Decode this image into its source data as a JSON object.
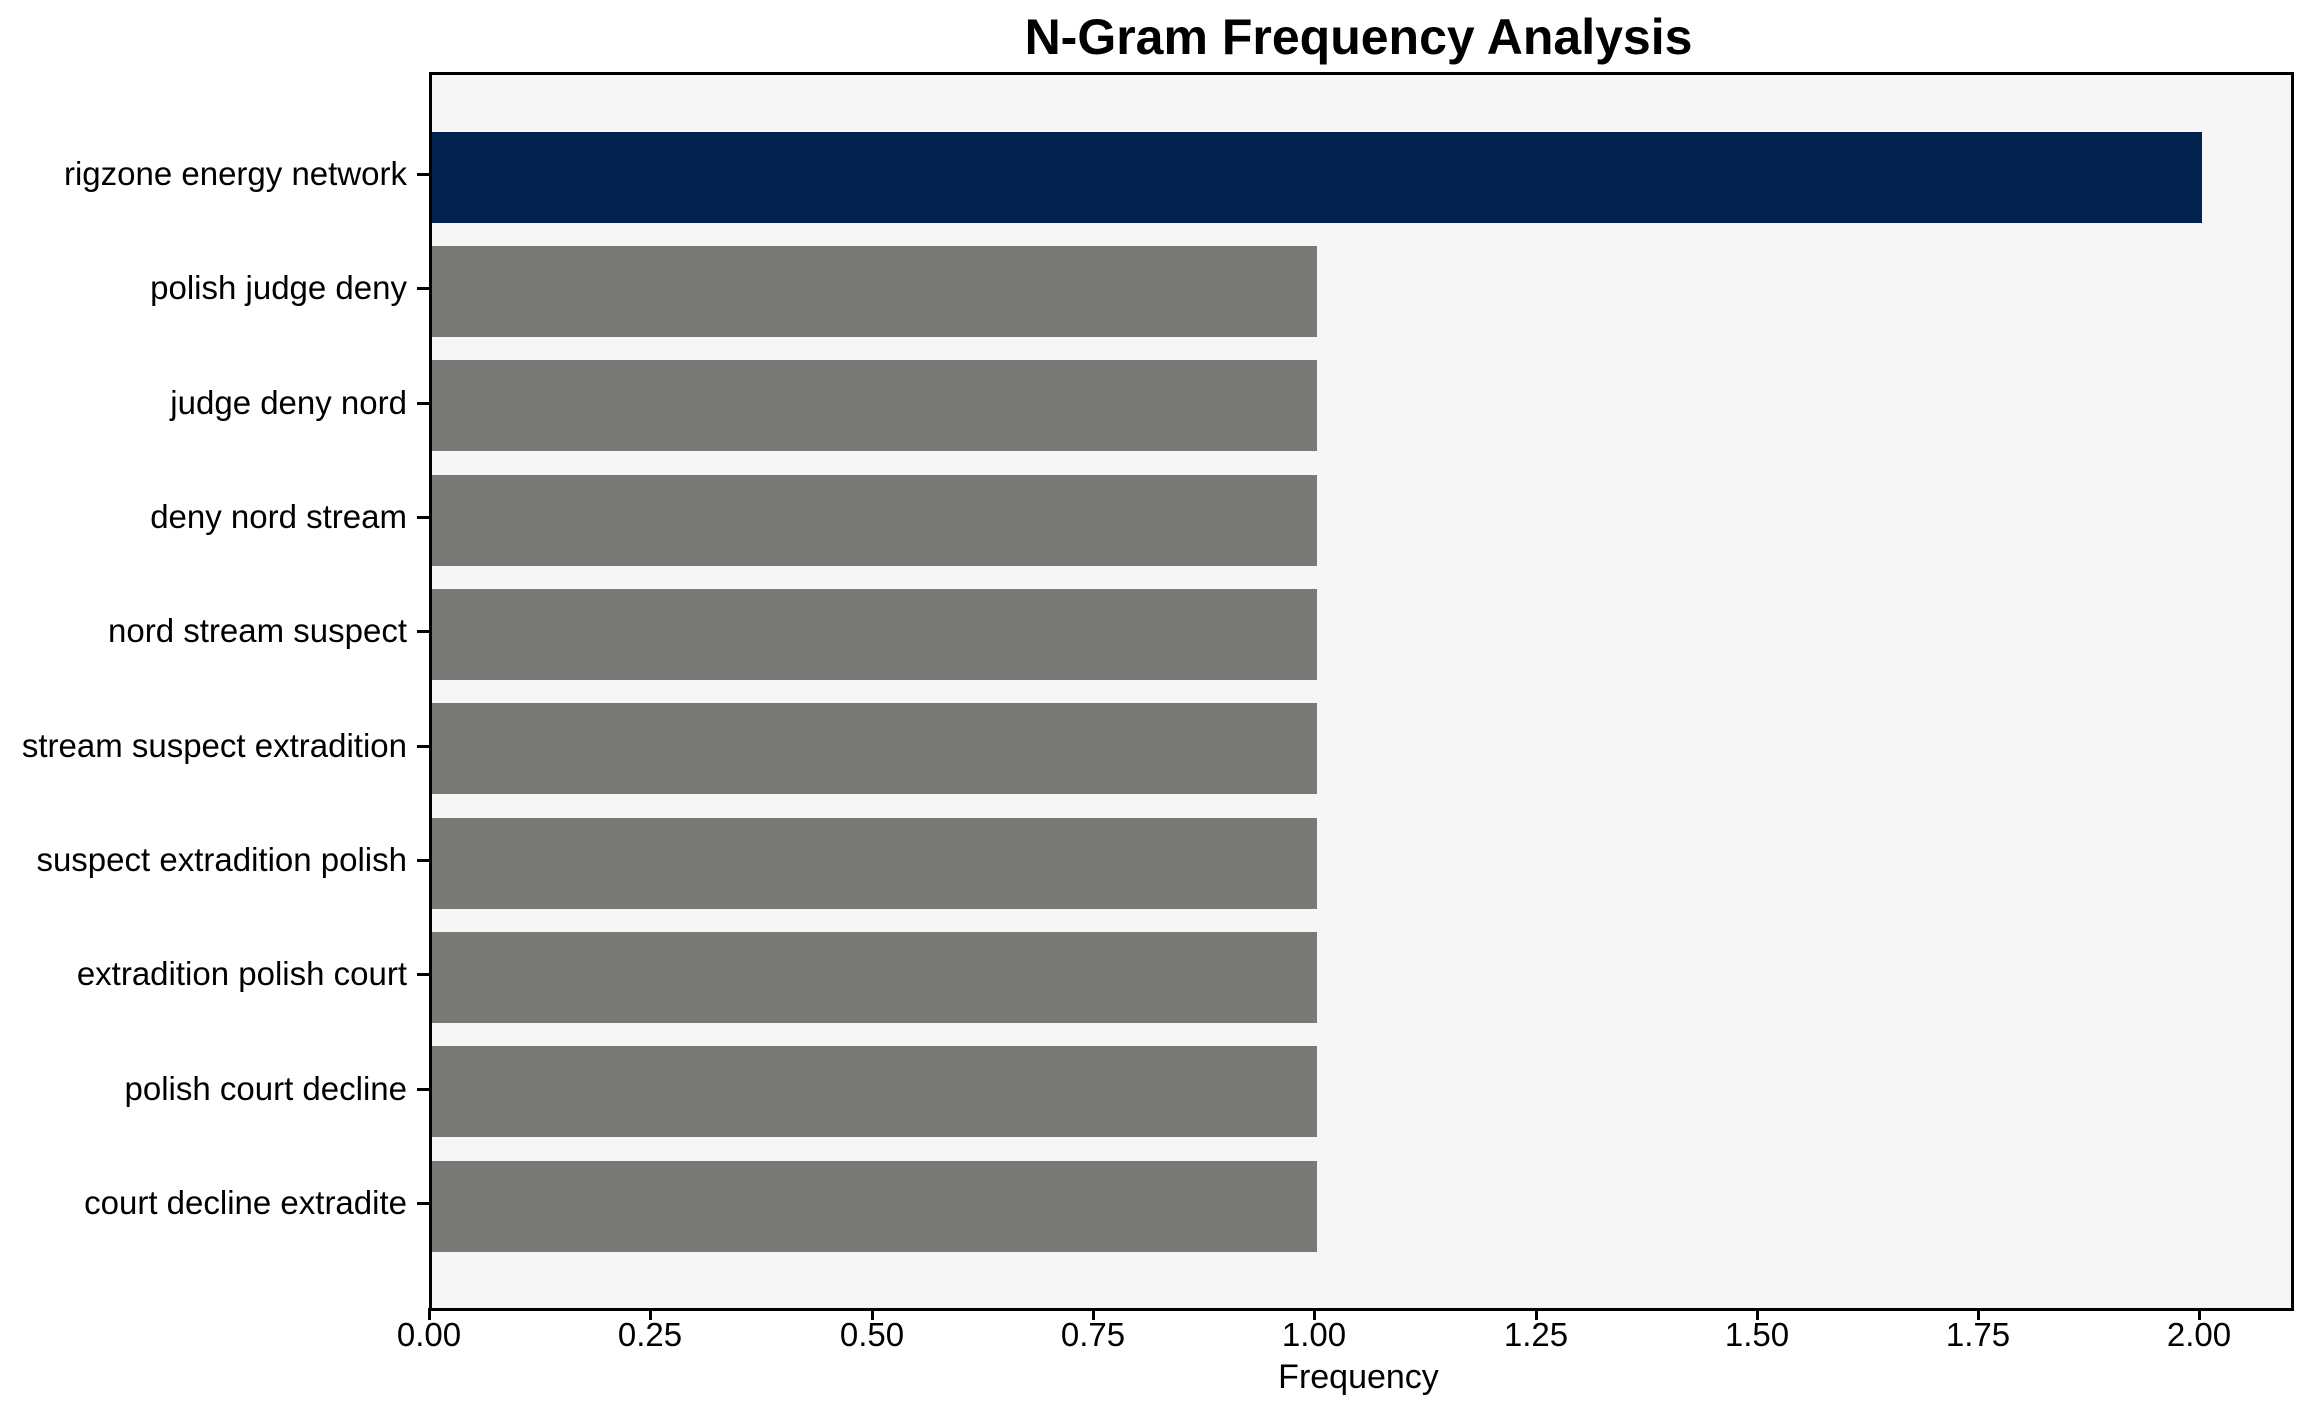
{
  "chart_data": {
    "type": "bar",
    "orientation": "horizontal",
    "title": "N-Gram Frequency Analysis",
    "xlabel": "Frequency",
    "ylabel": "",
    "categories": [
      "rigzone energy network",
      "polish judge deny",
      "judge deny nord",
      "deny nord stream",
      "nord stream suspect",
      "stream suspect extradition",
      "suspect extradition polish",
      "extradition polish court",
      "polish court decline",
      "court decline extradite"
    ],
    "values": [
      2,
      1,
      1,
      1,
      1,
      1,
      1,
      1,
      1,
      1
    ],
    "bar_colors": [
      "#022350",
      "#7b7975",
      "#7b7975",
      "#7b7975",
      "#7b7975",
      "#7b7975",
      "#7b7975",
      "#7b7975",
      "#7b7975",
      "#7b7975"
    ],
    "xlim": [
      0,
      2.1
    ],
    "xticks": [
      0.0,
      0.25,
      0.5,
      0.75,
      1.0,
      1.25,
      1.5,
      1.75,
      2.0
    ],
    "xtick_labels": [
      "0.00",
      "0.25",
      "0.50",
      "0.75",
      "1.00",
      "1.25",
      "1.50",
      "1.75",
      "2.00"
    ],
    "grid": false,
    "legend": null,
    "colors": {
      "highlight_bar": "#022350",
      "default_bar": "#7b7975",
      "plot_background": "#f6f6f6",
      "figure_background": "#ffffff",
      "spine": "#000000",
      "text": "#000000"
    }
  }
}
